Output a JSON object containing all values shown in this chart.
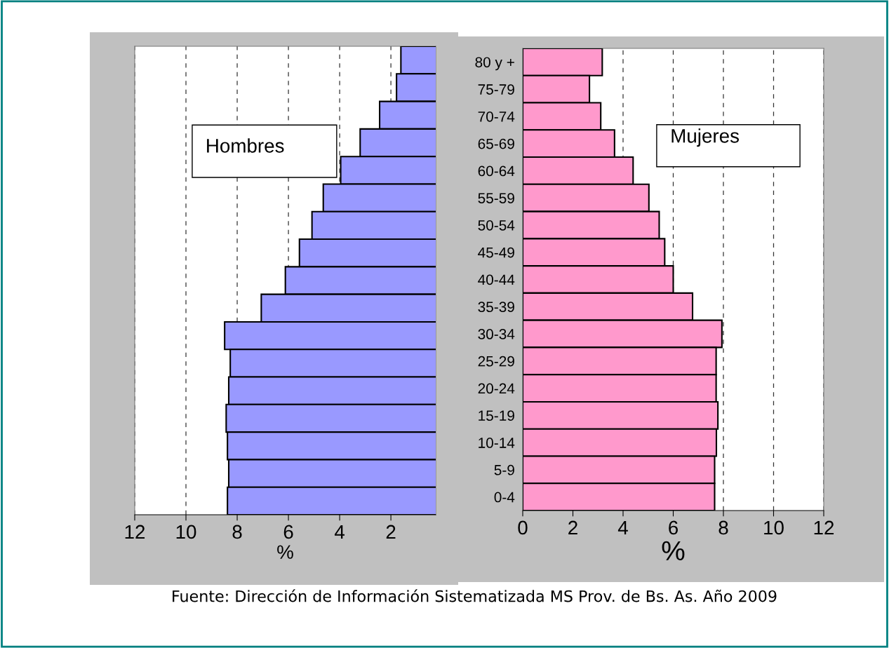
{
  "chart_data": [
    {
      "type": "bar",
      "orientation": "horizontal",
      "categories": [
        null,
        null,
        null,
        null,
        null,
        null,
        null,
        null,
        null,
        null,
        null,
        null,
        null,
        null,
        null,
        null,
        null
      ],
      "series": [
        {
          "color": "#9999ff",
          "values": [
            1.61,
            1.78,
            2.44,
            3.2,
            3.96,
            4.64,
            5.08,
            5.57,
            6.12,
            7.06,
            8.49,
            8.27,
            8.33,
            8.43,
            8.38,
            8.33,
            8.38
          ]
        }
      ],
      "xlim": [
        12,
        0.25
      ],
      "xticks": [
        12,
        10,
        8,
        6,
        4,
        2
      ],
      "xlabel": "%",
      "grid": "x",
      "tick_labels": "x",
      "legend": false,
      "annotations": [
        "Hombres"
      ]
    },
    {
      "type": "bar",
      "orientation": "horizontal",
      "categories": [
        "80 y +",
        "75-79",
        "70-74",
        "65-69",
        "60-64",
        "55-59",
        "50-54",
        "45-49",
        "40-44",
        "35-39",
        "30-34",
        "25-29",
        "20-24",
        "15-19",
        "10-14",
        "5-9",
        "0-4"
      ],
      "series": [
        {
          "color": "#ff99cc",
          "values": [
            3.17,
            2.66,
            3.11,
            3.66,
            4.4,
            5.03,
            5.44,
            5.66,
            6.0,
            6.77,
            7.94,
            7.71,
            7.71,
            7.78,
            7.72,
            7.65,
            7.65
          ]
        }
      ],
      "xlim": [
        0,
        12
      ],
      "xticks": [
        0,
        2,
        4,
        6,
        8,
        10,
        12
      ],
      "xlabel": "%",
      "grid": "x",
      "legend": false,
      "annotations": [
        "Mujeres",
        "Fuente: Dirección de Información Sistematizada MS Prov. de Bs. As. Año 2009"
      ]
    }
  ]
}
